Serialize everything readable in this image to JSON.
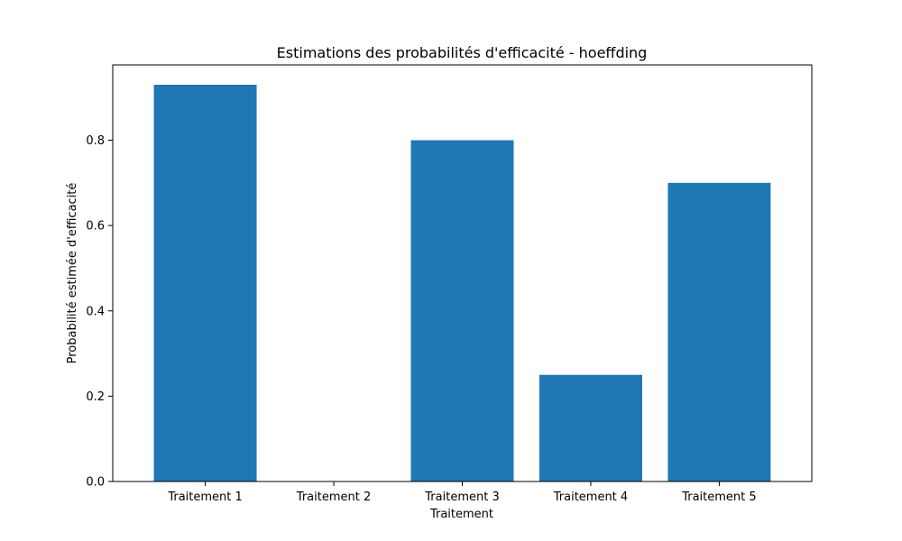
{
  "chart_data": {
    "type": "bar",
    "title": "Estimations des probabilités d'efficacité - hoeffding",
    "xlabel": "Traitement",
    "ylabel": "Probabilité estimée d'efficacité",
    "categories": [
      "Traitement 1",
      "Traitement 2",
      "Traitement 3",
      "Traitement 4",
      "Traitement 5"
    ],
    "values": [
      0.93,
      0.0,
      0.8,
      0.25,
      0.7
    ],
    "ylim": [
      0,
      0.9765
    ],
    "yticks": [
      0.0,
      0.2,
      0.4,
      0.6,
      0.8
    ],
    "ytick_labels": [
      "0.0",
      "0.2",
      "0.4",
      "0.6",
      "0.8"
    ],
    "grid": false,
    "bar_color": "#1f77b4"
  }
}
